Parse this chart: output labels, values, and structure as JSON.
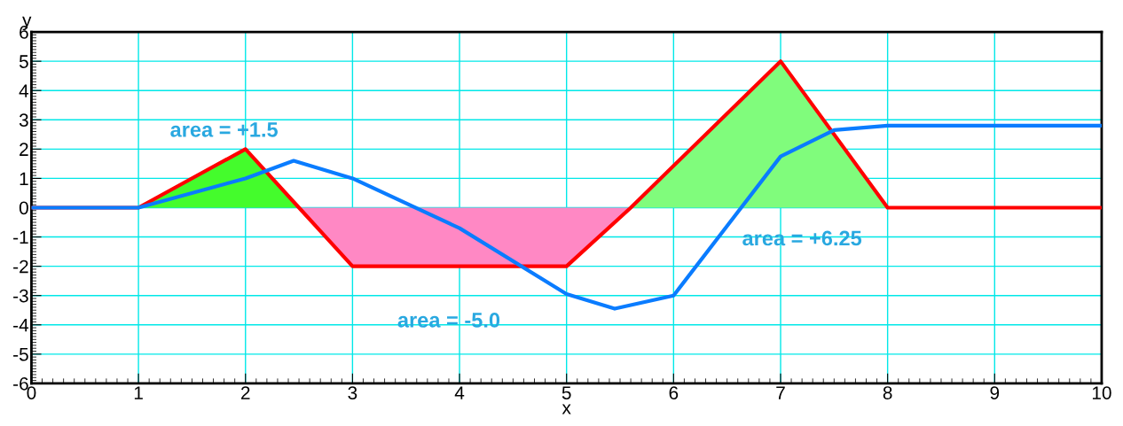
{
  "chart_data": {
    "type": "line",
    "xlabel": "x",
    "ylabel": "y",
    "xlim": [
      0,
      10
    ],
    "ylim": [
      -6,
      6
    ],
    "xticks": [
      0,
      1,
      2,
      3,
      4,
      5,
      6,
      7,
      8,
      9,
      10
    ],
    "yticks": [
      -6,
      -5,
      -4,
      -3,
      -2,
      -1,
      0,
      1,
      2,
      3,
      4,
      5,
      6
    ],
    "grid": true,
    "marker": "none",
    "line_style": "solid",
    "series": [
      {
        "type": "area",
        "color": "#44fc2c",
        "x": [
          1,
          2,
          2.5
        ],
        "values": [
          0,
          2,
          0
        ]
      },
      {
        "type": "area",
        "color": "#ff88c4",
        "x": [
          2.5,
          3,
          5,
          5.6
        ],
        "values": [
          0,
          -2,
          -2,
          0
        ]
      },
      {
        "type": "area",
        "color": "#80fc7c",
        "x": [
          5.6,
          7,
          8
        ],
        "values": [
          0,
          5,
          0
        ]
      },
      {
        "color": "#ff0000",
        "x": [
          0,
          1,
          2,
          2.5,
          3,
          5,
          5.6,
          7,
          8,
          10
        ],
        "values": [
          0,
          0,
          2,
          0,
          -2,
          -2,
          0,
          5,
          0,
          0
        ]
      },
      {
        "color": "#0a7cff",
        "x": [
          0,
          1,
          2,
          2.45,
          3,
          4,
          5,
          5.45,
          6,
          7,
          7.5,
          8,
          10
        ],
        "values": [
          0,
          0,
          1,
          1.6,
          1,
          -0.7,
          -2.95,
          -3.45,
          -3,
          1.75,
          2.65,
          2.8,
          2.8
        ]
      }
    ],
    "annotations": [
      "area = +1.5",
      "area = -5.0",
      "area = +6.25"
    ]
  }
}
